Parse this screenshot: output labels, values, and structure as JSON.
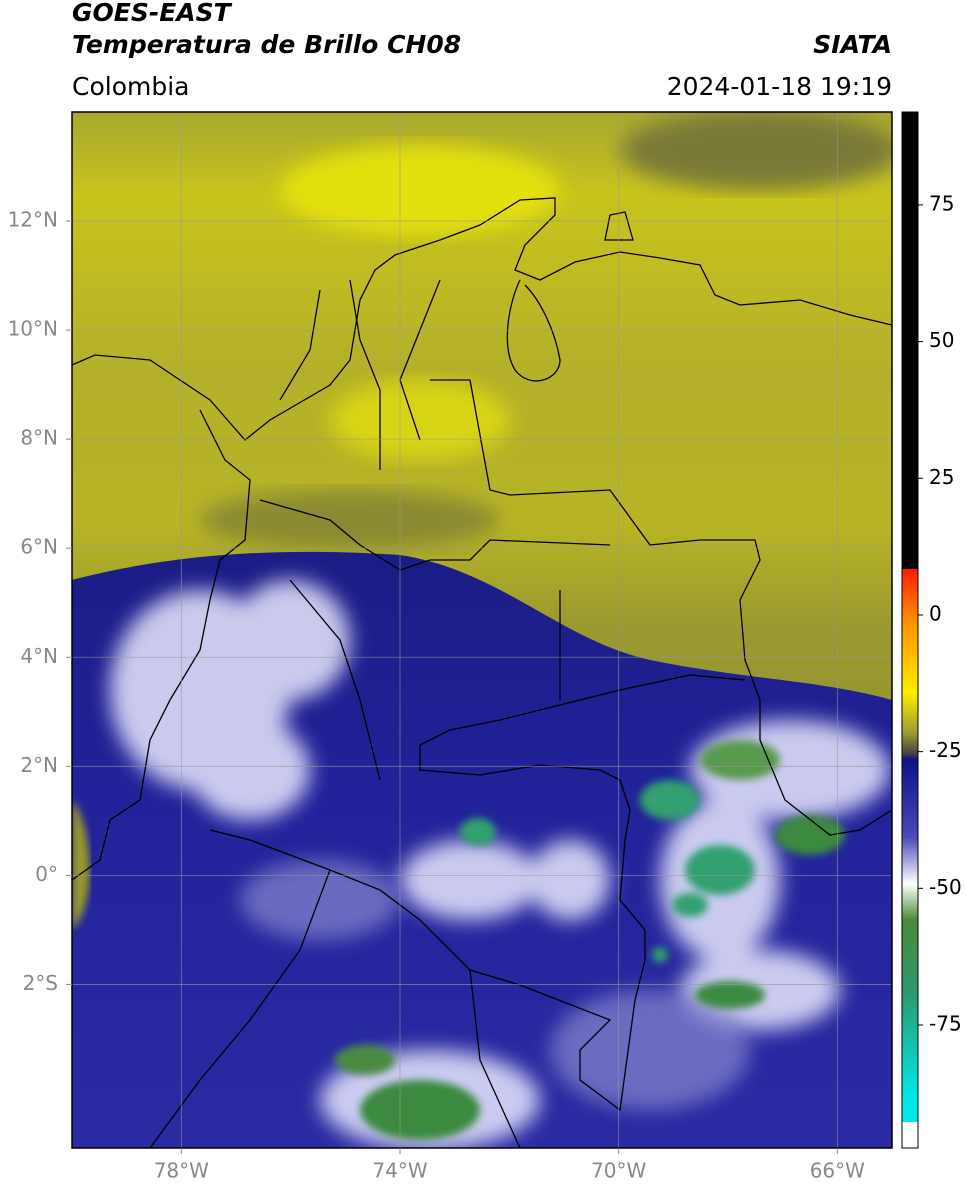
{
  "header": {
    "title": "GOES-EAST",
    "subtitle": "Temperatura de Brillo CH08",
    "source": "SIATA",
    "region": "Colombia",
    "datetime": "2024-01-18 19:19"
  },
  "map": {
    "lonlim": [
      -80,
      -65
    ],
    "latlim": [
      -5,
      14
    ],
    "xticks": [
      {
        "value": -78,
        "label": "78°W"
      },
      {
        "value": -74,
        "label": "74°W"
      },
      {
        "value": -70,
        "label": "70°W"
      },
      {
        "value": -66,
        "label": "66°W"
      }
    ],
    "yticks": [
      {
        "value": 12,
        "label": "12°N"
      },
      {
        "value": 10,
        "label": "10°N"
      },
      {
        "value": 8,
        "label": "8°N"
      },
      {
        "value": 6,
        "label": "6°N"
      },
      {
        "value": 4,
        "label": "4°N"
      },
      {
        "value": 2,
        "label": "2°N"
      },
      {
        "value": 0,
        "label": "0°"
      },
      {
        "value": -2,
        "label": "2°S"
      }
    ],
    "grid": true
  },
  "colorbar": {
    "lim": [
      -97.5,
      92
    ],
    "ticks": [
      75,
      50,
      25,
      0,
      -25,
      -50,
      -75
    ]
  }
}
